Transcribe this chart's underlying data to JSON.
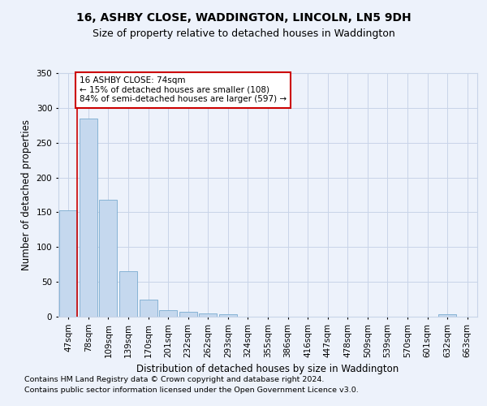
{
  "title": "16, ASHBY CLOSE, WADDINGTON, LINCOLN, LN5 9DH",
  "subtitle": "Size of property relative to detached houses in Waddington",
  "xlabel": "Distribution of detached houses by size in Waddington",
  "ylabel": "Number of detached properties",
  "categories": [
    "47sqm",
    "78sqm",
    "109sqm",
    "139sqm",
    "170sqm",
    "201sqm",
    "232sqm",
    "262sqm",
    "293sqm",
    "324sqm",
    "355sqm",
    "386sqm",
    "416sqm",
    "447sqm",
    "478sqm",
    "509sqm",
    "539sqm",
    "570sqm",
    "601sqm",
    "632sqm",
    "663sqm"
  ],
  "values": [
    153,
    285,
    168,
    65,
    25,
    9,
    7,
    5,
    4,
    0,
    0,
    0,
    0,
    0,
    0,
    0,
    0,
    0,
    0,
    4,
    0
  ],
  "bar_color": "#c5d8ee",
  "bar_edge_color": "#7aabcf",
  "annotation_text_line1": "16 ASHBY CLOSE: 74sqm",
  "annotation_text_line2": "← 15% of detached houses are smaller (108)",
  "annotation_text_line3": "84% of semi-detached houses are larger (597) →",
  "vline_color": "#cc0000",
  "annotation_box_edge": "#cc0000",
  "annotation_box_face": "#ffffff",
  "ylim": [
    0,
    350
  ],
  "xlim_min": -0.5,
  "footnote_line1": "Contains HM Land Registry data © Crown copyright and database right 2024.",
  "footnote_line2": "Contains public sector information licensed under the Open Government Licence v3.0.",
  "background_color": "#edf2fb",
  "grid_color": "#c8d4e8",
  "title_fontsize": 10,
  "subtitle_fontsize": 9,
  "axis_label_fontsize": 8.5,
  "tick_fontsize": 7.5,
  "annotation_fontsize": 7.5,
  "footnote_fontsize": 6.8,
  "vline_x": 0.42
}
